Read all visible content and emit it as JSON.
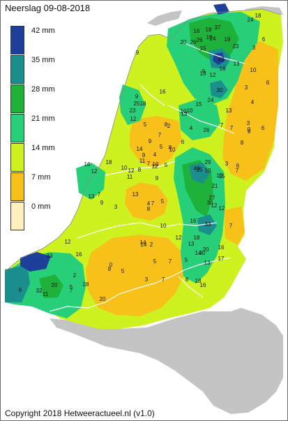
{
  "title": "Neerslag 09-08-2018",
  "copyright": "Copyright 2018 Hetweeractueel.nl (v1.0)",
  "legend": [
    {
      "label": "42 mm",
      "color": "#1e3f9a"
    },
    {
      "label": "35 mm",
      "color": "#1b8e8e"
    },
    {
      "label": "28 mm",
      "color": "#1eb23a"
    },
    {
      "label": "21 mm",
      "color": "#27cf79"
    },
    {
      "label": "14 mm",
      "color": "#cdf21f"
    },
    {
      "label": "7 mm",
      "color": "#f7c11a"
    },
    {
      "label": "0 mm",
      "color": "#fdefbe"
    }
  ],
  "stations": [
    "37",
    "18",
    "24",
    "18",
    "16",
    "18",
    "20",
    "26",
    "26",
    "24",
    "19",
    "23",
    "15",
    "9",
    "43",
    "13",
    "6",
    "16",
    "9",
    "13",
    "12",
    "30",
    "3",
    "10",
    "3",
    "6",
    "4",
    "9",
    "25",
    "18",
    "23",
    "12",
    "16",
    "5",
    "10",
    "13",
    "15",
    "10",
    "24",
    "8",
    "7",
    "2",
    "4",
    "13",
    "7",
    "9",
    "26",
    "7",
    "3",
    "0",
    "6",
    "8",
    "14",
    "9",
    "9",
    "4",
    "8",
    "5",
    "6",
    "11",
    "10",
    "7",
    "8",
    "9",
    "5",
    "10",
    "12",
    "3",
    "6",
    "7",
    "15",
    "16",
    "12",
    "18",
    "10",
    "12",
    "11",
    "40",
    "25",
    "10",
    "29",
    "15",
    "21",
    "27",
    "30",
    "12",
    "16",
    "9",
    "7",
    "13",
    "4",
    "8",
    "7",
    "5",
    "10",
    "12",
    "13",
    "5",
    "7",
    "13",
    "3",
    "12",
    "33",
    "7",
    "14",
    "2",
    "18",
    "16",
    "17",
    "14",
    "30",
    "13",
    "5",
    "0",
    "8",
    "33",
    "12",
    "16",
    "14",
    "5",
    "7",
    "3",
    "2",
    "20",
    "8",
    "18",
    "16",
    "20",
    "28",
    "5",
    "11",
    "6",
    "32",
    "7",
    "20",
    "14"
  ]
}
